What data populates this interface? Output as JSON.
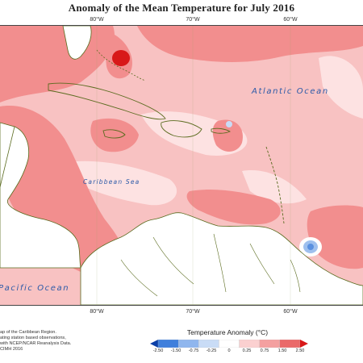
{
  "title": "Anomaly of the Mean Temperature for July 2016",
  "longitude_ticks_top": [
    "80°W",
    "70°W",
    "60°W"
  ],
  "longitude_ticks_bottom": [
    "80°W",
    "70°W",
    "60°W"
  ],
  "ocean_labels": {
    "atlantic": "Atlantic Ocean",
    "caribbean": "Caribbean Sea",
    "pacific": "Pacific Ocean"
  },
  "credits": [
    "ap of the Caribbean Region.",
    "ating station based observations,",
    "with NCEP/NCAR Reanalysis Data.",
    "CIMH 2016"
  ],
  "legend": {
    "title": "Temperature Anomaly (°C)",
    "labels": [
      "-2.50",
      "-1.50",
      "-0.75",
      "-0.25",
      "0",
      "0.25",
      "0.75",
      "1.50",
      "2.50"
    ],
    "colors": [
      "#0a3fa8",
      "#3f7fdc",
      "#8fb6ee",
      "#c9dcf6",
      "#ffffff",
      "#fbd0d0",
      "#f4a0a0",
      "#ea6a6a",
      "#d81818"
    ]
  },
  "map_colors": {
    "land_outline": "#5a6b1e",
    "base_anomaly": "#f8c2c2",
    "warm": "#f28e8e",
    "hot": "#d81818",
    "light": "#fde2e2",
    "cool": "#9fc0ee"
  }
}
